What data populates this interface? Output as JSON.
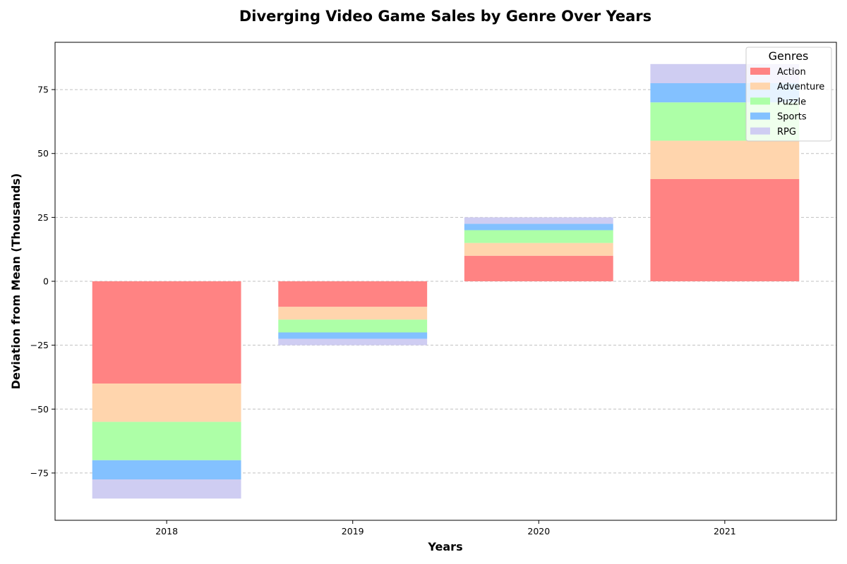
{
  "chart_data": {
    "type": "bar",
    "stacked": true,
    "title": "Diverging Video Game Sales by Genre Over Years",
    "xlabel": "Years",
    "ylabel": "Deviation from Mean (Thousands)",
    "categories": [
      "2018",
      "2019",
      "2020",
      "2021"
    ],
    "series": [
      {
        "name": "Action",
        "color": "#ff8383",
        "values": [
          -40,
          -10,
          10,
          40
        ]
      },
      {
        "name": "Adventure",
        "color": "#ffd5ad",
        "values": [
          -15,
          -5,
          5,
          15
        ]
      },
      {
        "name": "Puzzle",
        "color": "#adffa7",
        "values": [
          -15,
          -5,
          5,
          15
        ]
      },
      {
        "name": "Sports",
        "color": "#83c1ff",
        "values": [
          -7.5,
          -2.5,
          2.5,
          7.5
        ]
      },
      {
        "name": "RPG",
        "color": "#cfcdf2",
        "values": [
          -7.5,
          -2.5,
          2.5,
          7.5
        ]
      }
    ],
    "ylim": [
      -93.5,
      93.5
    ],
    "yticks": [
      -75,
      -50,
      -25,
      0,
      25,
      50,
      75
    ],
    "ytick_labels": [
      "−75",
      "−50",
      "−25",
      "0",
      "25",
      "50",
      "75"
    ],
    "grid": "y-dashed",
    "legend": {
      "title": "Genres",
      "position": "top-right"
    }
  }
}
